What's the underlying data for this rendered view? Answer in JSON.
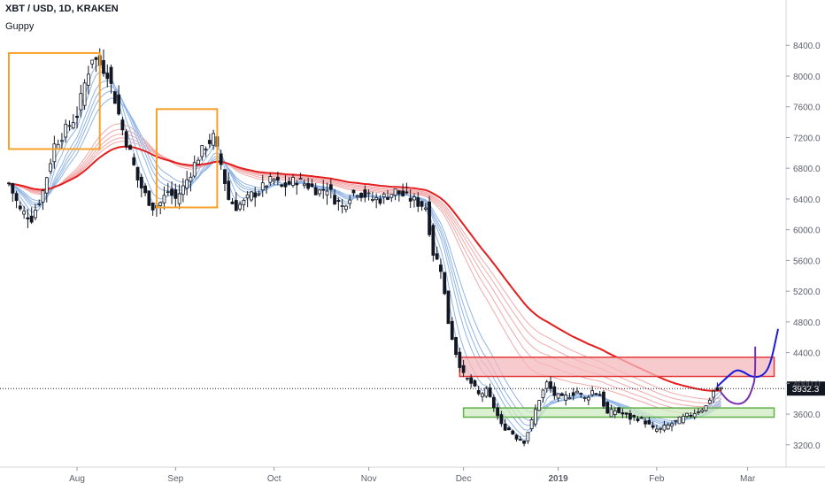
{
  "header": {
    "title": "XBT / USD, 1D, KRAKEN",
    "indicator": "Guppy"
  },
  "colors": {
    "background": "#ffffff",
    "candle": "#131722",
    "ema_long_main": "#e41e1e",
    "ema_short_ribbon": "#8fb4e6",
    "ema_long_ribbon": "#f2a9a9",
    "box_orange": "#f5a12b",
    "zone_red_fill": "#f4b8bc",
    "zone_red_stroke": "#e23a3a",
    "zone_green_fill": "#cfe9c2",
    "zone_green_stroke": "#5fb048",
    "projection_blue": "#1a1adb",
    "projection_purple": "#7a2fb0",
    "price_tag_bg": "#131722",
    "axis_text": "#5d606b",
    "grid": "#e8e8ea"
  },
  "chart_data": {
    "type": "candlestick",
    "symbol": "XBT / USD",
    "timeframe": "1D",
    "exchange": "KRAKEN",
    "indicator": "Guppy",
    "x_tick_labels": [
      "Aug",
      "Sep",
      "Oct",
      "Nov",
      "Dec",
      "2019",
      "Feb",
      "Mar"
    ],
    "y_ticks": [
      3200,
      3600,
      4000,
      4400,
      4800,
      5200,
      5600,
      6000,
      6400,
      6800,
      7200,
      7600,
      8000,
      8400
    ],
    "y_tick_labels": [
      "3200.0",
      "3600.0",
      "4000.0",
      "4400.0",
      "4800.0",
      "5200.0",
      "5600.0",
      "6000.0",
      "6400.0",
      "6800.0",
      "7200.0",
      "7600.0",
      "8000.0",
      "8400.0"
    ],
    "ylim": [
      2910,
      8990
    ],
    "last_price": 3932.3,
    "last_price_label": "3932.3",
    "closes_anchor": [
      [
        0,
        6600
      ],
      [
        3,
        6250
      ],
      [
        6,
        6150
      ],
      [
        9,
        6500
      ],
      [
        12,
        7100
      ],
      [
        15,
        7300
      ],
      [
        18,
        7500
      ],
      [
        20,
        7900
      ],
      [
        22,
        8250
      ],
      [
        24,
        8150
      ],
      [
        26,
        8050
      ],
      [
        28,
        7700
      ],
      [
        30,
        7300
      ],
      [
        32,
        7000
      ],
      [
        34,
        6650
      ],
      [
        36,
        6450
      ],
      [
        38,
        6300
      ],
      [
        40,
        6350
      ],
      [
        42,
        6500
      ],
      [
        44,
        6400
      ],
      [
        46,
        6550
      ],
      [
        48,
        6750
      ],
      [
        50,
        6950
      ],
      [
        52,
        7100
      ],
      [
        54,
        7200
      ],
      [
        56,
        6850
      ],
      [
        58,
        6400
      ],
      [
        60,
        6300
      ],
      [
        62,
        6350
      ],
      [
        64,
        6450
      ],
      [
        66,
        6500
      ],
      [
        68,
        6600
      ],
      [
        70,
        6650
      ],
      [
        72,
        6550
      ],
      [
        74,
        6600
      ],
      [
        76,
        6650
      ],
      [
        78,
        6600
      ],
      [
        80,
        6550
      ],
      [
        82,
        6500
      ],
      [
        84,
        6550
      ],
      [
        86,
        6400
      ],
      [
        88,
        6300
      ],
      [
        90,
        6450
      ],
      [
        92,
        6500
      ],
      [
        94,
        6450
      ],
      [
        96,
        6400
      ],
      [
        98,
        6400
      ],
      [
        100,
        6450
      ],
      [
        102,
        6500
      ],
      [
        104,
        6450
      ],
      [
        106,
        6400
      ],
      [
        108,
        6350
      ],
      [
        110,
        6300
      ],
      [
        112,
        5700
      ],
      [
        114,
        5500
      ],
      [
        116,
        4800
      ],
      [
        118,
        4400
      ],
      [
        120,
        4100
      ],
      [
        122,
        4000
      ],
      [
        124,
        3850
      ],
      [
        126,
        3900
      ],
      [
        128,
        3700
      ],
      [
        130,
        3450
      ],
      [
        132,
        3400
      ],
      [
        134,
        3300
      ],
      [
        136,
        3250
      ],
      [
        138,
        3500
      ],
      [
        140,
        3800
      ],
      [
        142,
        4000
      ],
      [
        144,
        3850
      ],
      [
        146,
        3800
      ],
      [
        148,
        3850
      ],
      [
        150,
        3900
      ],
      [
        152,
        3800
      ],
      [
        154,
        3900
      ],
      [
        156,
        3850
      ],
      [
        158,
        3600
      ],
      [
        160,
        3650
      ],
      [
        162,
        3600
      ],
      [
        164,
        3550
      ],
      [
        166,
        3550
      ],
      [
        168,
        3500
      ],
      [
        170,
        3400
      ],
      [
        172,
        3400
      ],
      [
        174,
        3450
      ],
      [
        176,
        3500
      ],
      [
        178,
        3550
      ],
      [
        180,
        3600
      ],
      [
        182,
        3650
      ],
      [
        184,
        3700
      ],
      [
        186,
        3900
      ],
      [
        188,
        3930
      ]
    ],
    "annotations": [
      {
        "type": "rectangle",
        "color": "orange",
        "from_index": 0,
        "to_index": 24,
        "price_top": 8300,
        "price_bottom": 7050
      },
      {
        "type": "rectangle",
        "color": "orange",
        "from_index": 39,
        "to_index": 55,
        "price_top": 7570,
        "price_bottom": 6290
      },
      {
        "type": "zone",
        "color": "red",
        "from_index": 119,
        "to_index": 202,
        "price_top": 4340,
        "price_bottom": 4090
      },
      {
        "type": "zone",
        "color": "green",
        "from_index": 120,
        "to_index": 202,
        "price_top": 3680,
        "price_bottom": 3560
      },
      {
        "type": "projection_path",
        "color": "blue",
        "points": [
          [
            187,
            3960
          ],
          [
            190,
            4100
          ],
          [
            192,
            4180
          ],
          [
            194,
            4150
          ],
          [
            196,
            4080
          ],
          [
            199,
            4090
          ],
          [
            201,
            4240
          ],
          [
            203,
            4700
          ]
        ]
      },
      {
        "type": "projection_path",
        "color": "purple",
        "points": [
          [
            188,
            3880
          ],
          [
            190,
            3760
          ],
          [
            193,
            3720
          ],
          [
            195,
            3790
          ],
          [
            196,
            3900
          ],
          [
            197,
            4060
          ],
          [
            197,
            4470
          ]
        ]
      }
    ]
  }
}
